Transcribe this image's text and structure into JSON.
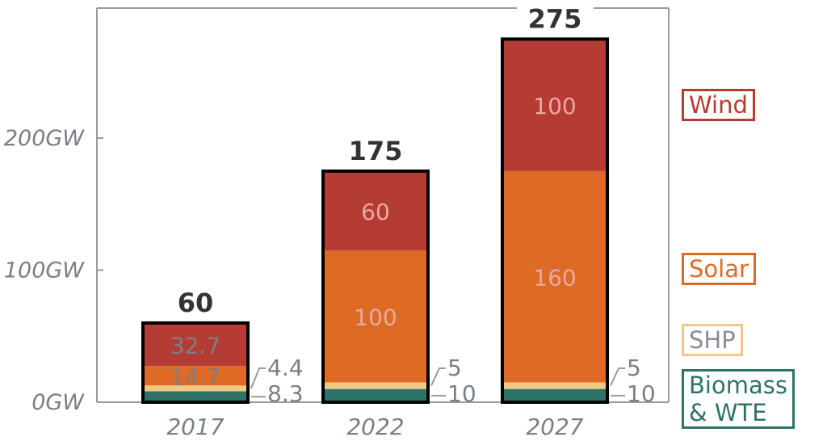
{
  "chart_data": {
    "type": "bar",
    "stacked": true,
    "title": "",
    "xlabel": "",
    "ylabel": "",
    "unit": "GW",
    "ylim": [
      0,
      285
    ],
    "yticks": [
      0,
      100,
      200
    ],
    "ytick_labels": [
      "0GW",
      "100GW",
      "200GW"
    ],
    "grid": false,
    "legend_placement": "right",
    "categories": [
      "2017",
      "2022",
      "2027"
    ],
    "totals": [
      60,
      175,
      275
    ],
    "total_labels": [
      "60",
      "175",
      "275"
    ],
    "series": [
      {
        "name": "Biomass & WTE",
        "legend_lines": [
          "Biomass",
          "& WTE"
        ],
        "color": "#2e7368",
        "values": [
          8.3,
          10,
          10
        ],
        "labels": [
          "8.3",
          "10",
          "10"
        ],
        "label_position": "outside-right"
      },
      {
        "name": "SHP",
        "legend_lines": [
          "SHP"
        ],
        "color": "#efc985",
        "values": [
          4.4,
          5,
          5
        ],
        "labels": [
          "4.4",
          "5",
          "5"
        ],
        "label_position": "outside-right"
      },
      {
        "name": "Solar",
        "legend_lines": [
          "Solar"
        ],
        "color": "#de6a25",
        "values": [
          14.7,
          100,
          160
        ],
        "labels": [
          "14.7",
          "100",
          "160"
        ],
        "label_position": "inside"
      },
      {
        "name": "Wind",
        "legend_lines": [
          "Wind"
        ],
        "color": "#b53c35",
        "values": [
          32.7,
          60,
          100
        ],
        "labels": [
          "32.7",
          "60",
          "100"
        ],
        "label_position": "inside"
      }
    ],
    "colors": {
      "axis": "#9a9a9a",
      "tick_text": "#7a7f86",
      "total_text": "#333333",
      "inside_text_light": "#e9a9a0",
      "inside_text_dark": "#7a7f86",
      "bar_outline": "#000000",
      "legend_text_shp": "#8a8f96"
    }
  }
}
